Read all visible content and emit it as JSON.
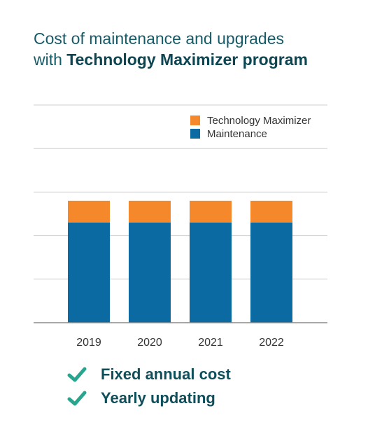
{
  "title": {
    "line1": "Cost of maintenance and upgrades",
    "line2_prefix": "with ",
    "line2_bold": "Technology Maximizer program"
  },
  "chart_data": {
    "type": "bar",
    "stacked": true,
    "categories": [
      "2019",
      "2020",
      "2021",
      "2022"
    ],
    "series": [
      {
        "name": "Maintenance",
        "values": [
          2.3,
          2.3,
          2.3,
          2.3
        ],
        "color": "#0b6aa2"
      },
      {
        "name": "Technology Maximizer",
        "values": [
          0.5,
          0.5,
          0.5,
          0.5
        ],
        "color": "#f5882a"
      }
    ],
    "ylim": [
      0,
      5
    ],
    "grid": true,
    "legend": "top-right",
    "xlabel": "",
    "ylabel": ""
  },
  "benefits": [
    {
      "label": "Fixed annual cost",
      "icon": "checkmark-icon"
    },
    {
      "label": "Yearly updating",
      "icon": "checkmark-icon"
    }
  ],
  "colors": {
    "title": "#155b68",
    "grid": "#cfcfcf",
    "check": "#27a58f"
  }
}
